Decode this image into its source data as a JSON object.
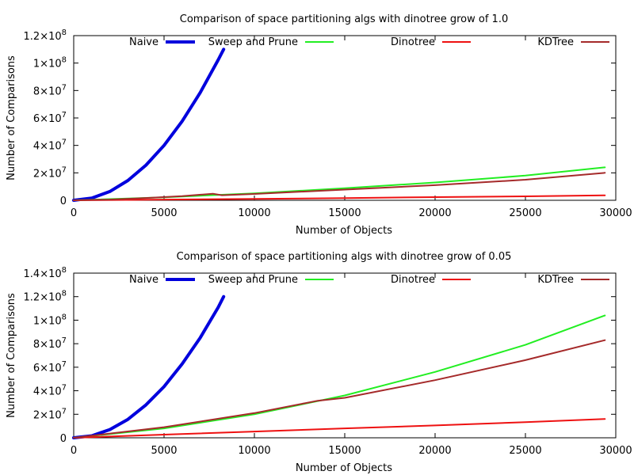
{
  "colors": {
    "naive": "#0000dd",
    "sweep": "#22ee22",
    "dinotree": "#ee1111",
    "kdtree": "#a52a2a"
  },
  "chart_data": [
    {
      "type": "line",
      "title": "Comparison of space partitioning algs with dinotree grow of 1.0",
      "xlabel": "Number of Objects",
      "ylabel": "Number of Comparisons",
      "xlim": [
        0,
        30000
      ],
      "ylim": [
        0,
        120000000
      ],
      "x_ticks": [
        0,
        5000,
        10000,
        15000,
        20000,
        25000,
        30000
      ],
      "x_tick_labels": [
        "0",
        "5000",
        "10000",
        "15000",
        "20000",
        "25000",
        "30000"
      ],
      "y_ticks": [
        0,
        20000000,
        40000000,
        60000000,
        80000000,
        100000000,
        120000000
      ],
      "y_tick_labels": [
        {
          "base": "0",
          "exp": ""
        },
        {
          "base": "2×10",
          "exp": "7"
        },
        {
          "base": "4×10",
          "exp": "7"
        },
        {
          "base": "6×10",
          "exp": "7"
        },
        {
          "base": "8×10",
          "exp": "7"
        },
        {
          "base": "1×10",
          "exp": "8"
        },
        {
          "base": "1.2×10",
          "exp": "8"
        }
      ],
      "legend_position": "top",
      "series": [
        {
          "name": "Naive",
          "key": "naive",
          "x": [
            0,
            1000,
            2000,
            3000,
            4000,
            5000,
            6000,
            7000,
            8000,
            8300
          ],
          "y": [
            0,
            1600000,
            6400000,
            14400000,
            25600000,
            40000000,
            57600000,
            78400000,
            102400000,
            110000000
          ]
        },
        {
          "name": "Sweep and Prune",
          "key": "sweep",
          "x": [
            0,
            5000,
            10000,
            15000,
            20000,
            25000,
            29400
          ],
          "y": [
            0,
            2200000,
            5000000,
            8800000,
            13000000,
            18000000,
            24000000
          ]
        },
        {
          "name": "Dinotree",
          "key": "dinotree",
          "x": [
            0,
            5000,
            10000,
            15000,
            20000,
            25000,
            29400
          ],
          "y": [
            0,
            500000,
            1000000,
            1600000,
            2300000,
            2900000,
            3600000
          ]
        },
        {
          "name": "KDTree",
          "key": "kdtree",
          "x": [
            0,
            2000,
            4000,
            6000,
            7700,
            8200,
            10000,
            15000,
            20000,
            25000,
            29400
          ],
          "y": [
            0,
            500000,
            1700000,
            3000000,
            4800000,
            3700000,
            4600000,
            7800000,
            11000000,
            15000000,
            20000000
          ]
        }
      ]
    },
    {
      "type": "line",
      "title": "Comparison of space partitioning algs with dinotree grow of 0.05",
      "xlabel": "Number of Objects",
      "ylabel": "Number of Comparisons",
      "xlim": [
        0,
        30000
      ],
      "ylim": [
        0,
        140000000
      ],
      "x_ticks": [
        0,
        5000,
        10000,
        15000,
        20000,
        25000,
        30000
      ],
      "x_tick_labels": [
        "0",
        "5000",
        "10000",
        "15000",
        "20000",
        "25000",
        "30000"
      ],
      "y_ticks": [
        0,
        20000000,
        40000000,
        60000000,
        80000000,
        100000000,
        120000000,
        140000000
      ],
      "y_tick_labels": [
        {
          "base": "0",
          "exp": ""
        },
        {
          "base": "2×10",
          "exp": "7"
        },
        {
          "base": "4×10",
          "exp": "7"
        },
        {
          "base": "6×10",
          "exp": "7"
        },
        {
          "base": "8×10",
          "exp": "7"
        },
        {
          "base": "1×10",
          "exp": "8"
        },
        {
          "base": "1.2×10",
          "exp": "8"
        },
        {
          "base": "1.4×10",
          "exp": "8"
        }
      ],
      "legend_position": "top",
      "series": [
        {
          "name": "Naive",
          "key": "naive",
          "x": [
            0,
            1000,
            2000,
            3000,
            4000,
            5000,
            6000,
            7000,
            8000,
            8300
          ],
          "y": [
            0,
            1700000,
            7000000,
            15700000,
            28000000,
            43500000,
            62700000,
            85000000,
            111000000,
            120000000
          ]
        },
        {
          "name": "Sweep and Prune",
          "key": "sweep",
          "x": [
            0,
            5000,
            10000,
            15000,
            20000,
            25000,
            29400
          ],
          "y": [
            0,
            8000000,
            20000000,
            36000000,
            56000000,
            79000000,
            104000000
          ]
        },
        {
          "name": "Dinotree",
          "key": "dinotree",
          "x": [
            0,
            5000,
            10000,
            15000,
            20000,
            25000,
            29400
          ],
          "y": [
            0,
            2700000,
            5300000,
            8000000,
            10500000,
            13300000,
            16000000
          ]
        },
        {
          "name": "KDTree",
          "key": "kdtree",
          "x": [
            0,
            5000,
            10000,
            13500,
            15000,
            20000,
            25000,
            29400
          ],
          "y": [
            0,
            9000000,
            21000000,
            31500000,
            34000000,
            49000000,
            66000000,
            83000000
          ]
        }
      ]
    }
  ]
}
